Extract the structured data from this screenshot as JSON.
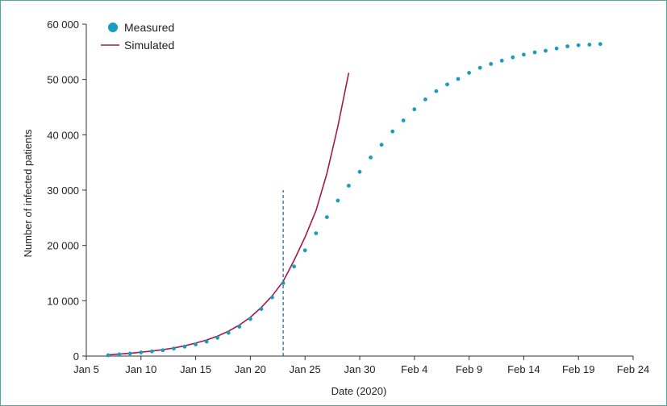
{
  "chart_data": {
    "type": "scatter+line",
    "xlabel": "Date (2020)",
    "ylabel": "Number of infected patients",
    "x_ticks": [
      "Jan 5",
      "Jan 10",
      "Jan 15",
      "Jan 20",
      "Jan 25",
      "Jan 30",
      "Feb 4",
      "Feb 9",
      "Feb 14",
      "Feb 19",
      "Feb 24"
    ],
    "y_ticks": [
      "0",
      "10 000",
      "20 000",
      "30 000",
      "40 000",
      "50 000",
      "60 000"
    ],
    "xlim": [
      "2020-01-05",
      "2020-02-24"
    ],
    "ylim": [
      0,
      60000
    ],
    "vline": {
      "x": "2020-01-23",
      "y": [
        0,
        30000
      ],
      "style": "dashed"
    },
    "legend": {
      "position": "top-left",
      "entries": [
        "Measured",
        "Simulated"
      ]
    },
    "colors": {
      "measured": "#1a9bc0",
      "simulated": "#a3194a",
      "vline": "#1f5f8b",
      "axis": "#333333"
    },
    "series": [
      {
        "name": "Measured",
        "type": "scatter",
        "x": [
          "2020-01-07",
          "2020-01-08",
          "2020-01-09",
          "2020-01-10",
          "2020-01-11",
          "2020-01-12",
          "2020-01-13",
          "2020-01-14",
          "2020-01-15",
          "2020-01-16",
          "2020-01-17",
          "2020-01-18",
          "2020-01-19",
          "2020-01-20",
          "2020-01-21",
          "2020-01-22",
          "2020-01-23",
          "2020-01-24",
          "2020-01-25",
          "2020-01-26",
          "2020-01-27",
          "2020-01-28",
          "2020-01-29",
          "2020-01-30",
          "2020-01-31",
          "2020-02-01",
          "2020-02-02",
          "2020-02-03",
          "2020-02-04",
          "2020-02-05",
          "2020-02-06",
          "2020-02-07",
          "2020-02-08",
          "2020-02-09",
          "2020-02-10",
          "2020-02-11",
          "2020-02-12",
          "2020-02-13",
          "2020-02-14",
          "2020-02-15",
          "2020-02-16",
          "2020-02-17",
          "2020-02-18",
          "2020-02-19",
          "2020-02-20",
          "2020-02-21"
        ],
        "y": [
          150,
          300,
          450,
          650,
          850,
          1050,
          1350,
          1700,
          2100,
          2600,
          3300,
          4200,
          5300,
          6700,
          8500,
          10600,
          13200,
          16200,
          19100,
          22200,
          25100,
          28100,
          30800,
          33300,
          35900,
          38200,
          40600,
          42600,
          44600,
          46400,
          47900,
          49100,
          50100,
          51200,
          52100,
          52800,
          53400,
          54000,
          54500,
          54900,
          55200,
          55600,
          56000,
          56200,
          56300,
          56400
        ]
      },
      {
        "name": "Simulated",
        "type": "line",
        "x": [
          "2020-01-07",
          "2020-01-08",
          "2020-01-09",
          "2020-01-10",
          "2020-01-11",
          "2020-01-12",
          "2020-01-13",
          "2020-01-14",
          "2020-01-15",
          "2020-01-16",
          "2020-01-17",
          "2020-01-18",
          "2020-01-19",
          "2020-01-20",
          "2020-01-21",
          "2020-01-22",
          "2020-01-23",
          "2020-01-24",
          "2020-01-25",
          "2020-01-26",
          "2020-01-27",
          "2020-01-28",
          "2020-01-29"
        ],
        "y": [
          200,
          350,
          500,
          700,
          900,
          1150,
          1450,
          1850,
          2350,
          2900,
          3600,
          4500,
          5600,
          7000,
          8800,
          10900,
          13500,
          17300,
          21500,
          26300,
          33000,
          41500,
          51200
        ]
      }
    ]
  }
}
